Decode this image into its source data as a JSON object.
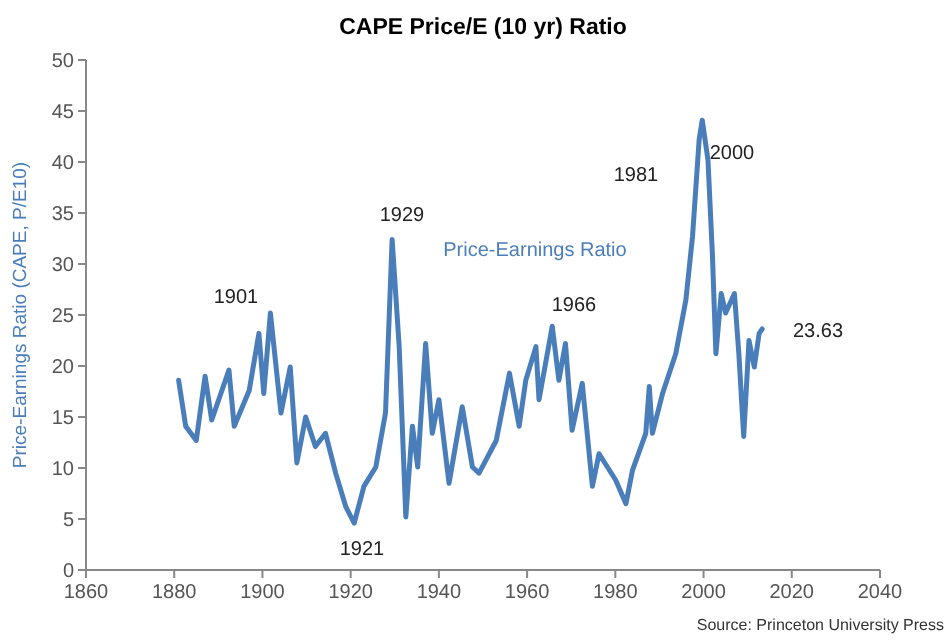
{
  "chart_data": {
    "type": "line",
    "title": "CAPE Price/E (10 yr) Ratio",
    "ylabel": "Price-Earnings Ratio (CAPE, P/E10)",
    "xlim": [
      1860,
      2040
    ],
    "xticks": [
      1860,
      1880,
      1900,
      1920,
      1940,
      1960,
      1980,
      2000,
      2020,
      2040
    ],
    "ylim": [
      0,
      50
    ],
    "yticks": [
      0,
      5,
      10,
      15,
      20,
      25,
      30,
      35,
      40,
      45,
      50
    ],
    "grid": false,
    "marker": "none",
    "line_style": "solid",
    "series": [
      {
        "name": "Price-Earnings Ratio",
        "color": "#4a7ebb",
        "x": [
          1881,
          1882.6,
          1885,
          1887,
          1888.5,
          1892.4,
          1893.6,
          1897,
          1899.2,
          1900.3,
          1901.8,
          1904.2,
          1906.3,
          1907.8,
          1909.8,
          1912,
          1914.3,
          1916.6,
          1918.9,
          1920.8,
          1923,
          1925.7,
          1927.9,
          1929.4,
          1931,
          1932.5,
          1934,
          1935.2,
          1937,
          1938.5,
          1940,
          1942.3,
          1945.3,
          1947.6,
          1949.1,
          1953,
          1956,
          1958.2,
          1959.7,
          1962,
          1962.7,
          1965.7,
          1967.2,
          1968.7,
          1970.2,
          1972.5,
          1974.8,
          1976.3,
          1980.1,
          1982.4,
          1983.9,
          1986.9,
          1987.7,
          1988.4,
          1990.7,
          1993.7,
          1996,
          1997.5,
          1999,
          1999.7,
          2001,
          2002,
          2002.8,
          2004,
          2005,
          2007,
          2008,
          2009.1,
          2010.3,
          2011.5,
          2012.6,
          2013.3
        ],
        "values": [
          18.6,
          14.1,
          12.7,
          19,
          14.7,
          19.6,
          14.1,
          17.6,
          23.2,
          17.3,
          25.2,
          15.4,
          19.9,
          10.5,
          15,
          12.1,
          13.4,
          9.5,
          6.2,
          4.6,
          8.2,
          10.1,
          15.4,
          32.4,
          21.9,
          5.2,
          14.1,
          10.1,
          22.2,
          13.4,
          16.7,
          8.5,
          16,
          10.1,
          9.5,
          12.7,
          19.3,
          14.1,
          18.6,
          21.9,
          16.7,
          23.9,
          18.6,
          22.2,
          13.7,
          18.3,
          8.2,
          11.4,
          8.8,
          6.5,
          9.8,
          13.4,
          18,
          13.4,
          17.3,
          21.2,
          26.5,
          32.7,
          42.2,
          44.1,
          40.2,
          31,
          21.2,
          27.1,
          25.2,
          27.1,
          21.2,
          13.1,
          22.5,
          19.9,
          23.2,
          23.63
        ]
      }
    ],
    "annotations": [
      "1901",
      "1929",
      "1921",
      "1966",
      "1981",
      "2000",
      "23.63",
      "Source: Princeton University Press"
    ]
  }
}
